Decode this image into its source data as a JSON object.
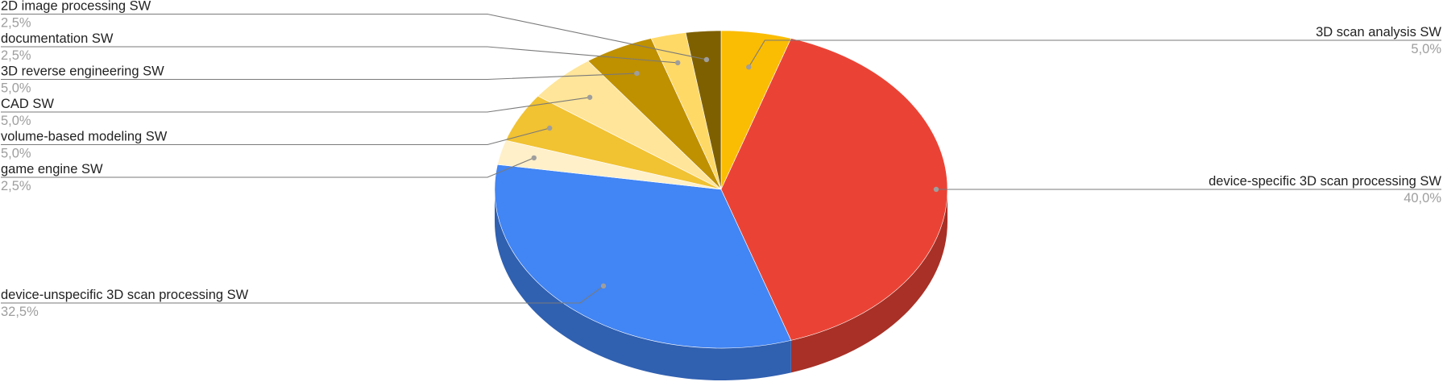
{
  "chart_data": {
    "type": "pie",
    "style": "3d",
    "title": "",
    "slices": [
      {
        "label": "3D scan analysis SW",
        "percent_label": "5,0%",
        "value": 5.0,
        "color": "#fbbc04"
      },
      {
        "label": "device-specific 3D scan processing SW",
        "percent_label": "40,0%",
        "value": 40.0,
        "color": "#ea4335"
      },
      {
        "label": "device-unspecific 3D scan processing SW",
        "percent_label": "32,5%",
        "value": 32.5,
        "color": "#4285f4"
      },
      {
        "label": "game engine SW",
        "percent_label": "2,5%",
        "value": 2.5,
        "color": "#fff0c9"
      },
      {
        "label": "volume-based modeling SW",
        "percent_label": "5,0%",
        "value": 5.0,
        "color": "#f1c232"
      },
      {
        "label": "CAD SW",
        "percent_label": "5,0%",
        "value": 5.0,
        "color": "#ffe599"
      },
      {
        "label": "3D reverse engineering SW",
        "percent_label": "5,0%",
        "value": 5.0,
        "color": "#bf9000"
      },
      {
        "label": "documentation SW",
        "percent_label": "2,5%",
        "value": 2.5,
        "color": "#ffd966"
      },
      {
        "label": "2D image processing SW",
        "percent_label": "2,5%",
        "value": 2.5,
        "color": "#7f6000"
      }
    ],
    "legend": "none",
    "labels": "outside with leader lines"
  }
}
